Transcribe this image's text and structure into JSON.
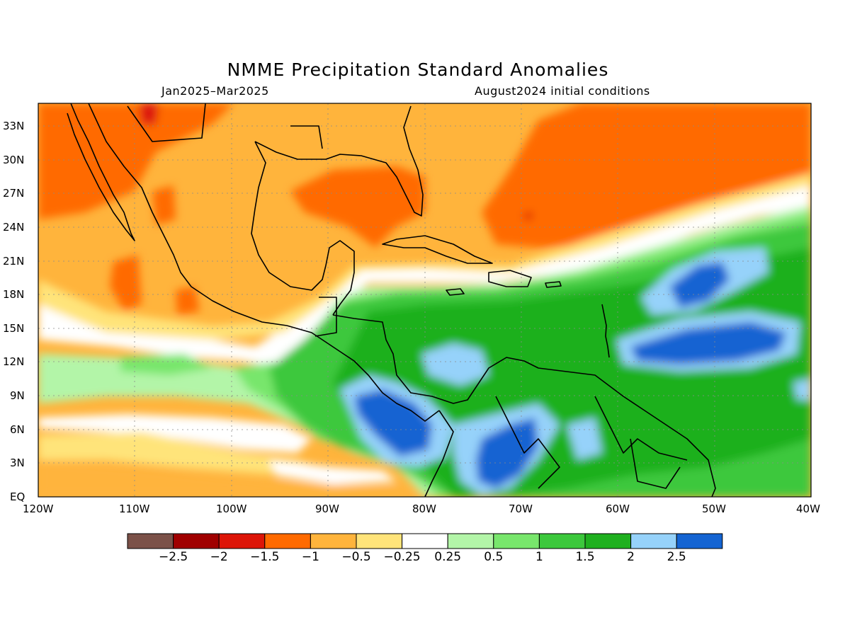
{
  "title": "NMME Precipitation Standard Anomalies",
  "subtitle_left": "Jan2025–Mar2025",
  "subtitle_right": "August2024 initial conditions",
  "map": {
    "lon_range": [
      -120,
      -40
    ],
    "lat_range": [
      0,
      35
    ],
    "lat_ticks": [
      "33N",
      "30N",
      "27N",
      "24N",
      "21N",
      "18N",
      "15N",
      "12N",
      "9N",
      "6N",
      "3N",
      "EQ"
    ],
    "lon_ticks": [
      "120W",
      "110W",
      "100W",
      "90W",
      "80W",
      "70W",
      "60W",
      "50W",
      "40W"
    ],
    "grid": true,
    "regions_summary": {
      "orange_red_dry": "Mexico, Gulf of Mexico, Florida, subtropical Atlantic",
      "green_blue_wet": "Caribbean Sea, Central America, northern South America, tropical Atlantic"
    }
  },
  "colorbar": {
    "colors": [
      "#7b5148",
      "#a00000",
      "#dd1508",
      "#ff6a00",
      "#ffb43c",
      "#ffe47a",
      "#ffffff",
      "#b3f5a8",
      "#78e66c",
      "#3cc83c",
      "#1fb01f",
      "#96d2fa",
      "#1464d2"
    ],
    "labels": [
      "−2.5",
      "−2",
      "−1.5",
      "−1",
      "−0.5",
      "−0.25",
      "0.25",
      "0.5",
      "1",
      "1.5",
      "2",
      "2.5"
    ]
  }
}
